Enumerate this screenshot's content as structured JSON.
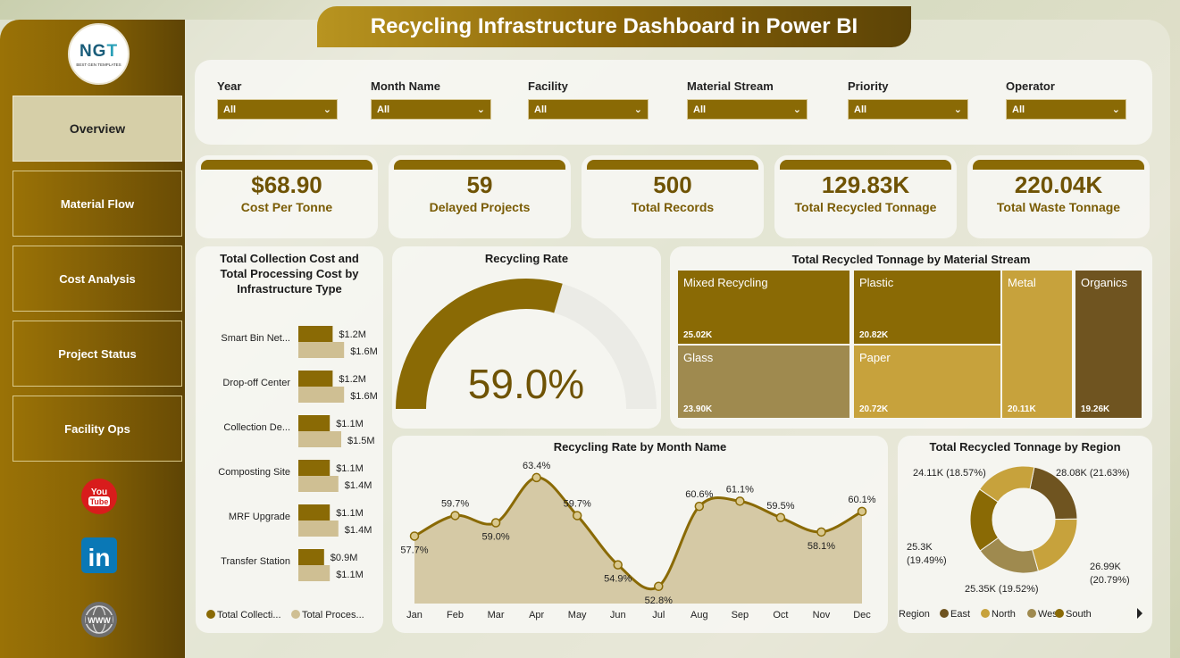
{
  "title": "Recycling Infrastructure Dashboard in Power BI",
  "logo": {
    "text_main": "NG",
    "text_accent": "T",
    "tagline": "BEST GEN TEMPLATES"
  },
  "nav": [
    {
      "label": "Overview",
      "active": true
    },
    {
      "label": "Material Flow",
      "active": false
    },
    {
      "label": "Cost Analysis",
      "active": false
    },
    {
      "label": "Project Status",
      "active": false
    },
    {
      "label": "Facility Ops",
      "active": false
    }
  ],
  "social": {
    "youtube": "You\nTube",
    "linkedin": "in",
    "web": "WWW"
  },
  "filters": [
    {
      "label": "Year",
      "value": "All"
    },
    {
      "label": "Month Name",
      "value": "All"
    },
    {
      "label": "Facility",
      "value": "All"
    },
    {
      "label": "Material Stream",
      "value": "All"
    },
    {
      "label": "Priority",
      "value": "All"
    },
    {
      "label": "Operator",
      "value": "All"
    }
  ],
  "kpis": [
    {
      "value": "$68.90",
      "label": "Cost Per Tonne"
    },
    {
      "value": "59",
      "label": "Delayed Projects"
    },
    {
      "value": "500",
      "label": "Total Records"
    },
    {
      "value": "129.83K",
      "label": "Total Recycled Tonnage"
    },
    {
      "value": "220.04K",
      "label": "Total Waste Tonnage"
    }
  ],
  "colors": {
    "dark_gold": "#8a6a05",
    "light_gold": "#cfbf93",
    "brown": "#6f5420",
    "mustard": "#c7a23c",
    "olive": "#9f8a4f"
  },
  "chart_data": [
    {
      "type": "bar",
      "title": "Total Collection Cost and Total Processing Cost by Infrastructure Type",
      "categories": [
        "Smart Bin Net...",
        "Drop-off Center",
        "Collection De...",
        "Composting Site",
        "MRF Upgrade",
        "Transfer Station"
      ],
      "series": [
        {
          "name": "Total Collecti...",
          "values": [
            1.2,
            1.2,
            1.1,
            1.1,
            1.1,
            0.9
          ],
          "labels": [
            "$1.2M",
            "$1.2M",
            "$1.1M",
            "$1.1M",
            "$1.1M",
            "$0.9M"
          ]
        },
        {
          "name": "Total Proces...",
          "values": [
            1.6,
            1.6,
            1.5,
            1.4,
            1.4,
            1.1
          ],
          "labels": [
            "$1.6M",
            "$1.6M",
            "$1.5M",
            "$1.4M",
            "$1.4M",
            "$1.1M"
          ]
        }
      ]
    },
    {
      "type": "gauge",
      "title": "Recycling Rate",
      "value": 59.0,
      "value_label": "59.0%",
      "max": 100
    },
    {
      "type": "treemap",
      "title": "Total Recycled Tonnage by Material Stream",
      "items": [
        {
          "name": "Mixed Recycling",
          "value": 25.02,
          "label": "25.02K"
        },
        {
          "name": "Glass",
          "value": 23.9,
          "label": "23.90K"
        },
        {
          "name": "Plastic",
          "value": 20.82,
          "label": "20.82K"
        },
        {
          "name": "Paper",
          "value": 20.72,
          "label": "20.72K"
        },
        {
          "name": "Metal",
          "value": 20.11,
          "label": "20.11K"
        },
        {
          "name": "Organics",
          "value": 19.26,
          "label": "19.26K"
        }
      ]
    },
    {
      "type": "area",
      "title": "Recycling Rate by Month Name",
      "x": [
        "Jan",
        "Feb",
        "Mar",
        "Apr",
        "May",
        "Jun",
        "Jul",
        "Aug",
        "Sep",
        "Oct",
        "Nov",
        "Dec"
      ],
      "values": [
        57.7,
        59.7,
        59.0,
        63.4,
        59.7,
        54.9,
        52.8,
        60.6,
        61.1,
        59.5,
        58.1,
        60.1
      ],
      "labels": [
        "57.7%",
        "59.7%",
        "59.0%",
        "63.4%",
        "59.7%",
        "54.9%",
        "52.8%",
        "60.6%",
        "61.1%",
        "59.5%",
        "58.1%",
        "60.1%"
      ]
    },
    {
      "type": "pie",
      "title": "Total Recycled Tonnage by Region",
      "legend_title": "Region",
      "slices": [
        {
          "name": "East",
          "value": 28.08,
          "label": "28.08K (21.63%)"
        },
        {
          "name": "North",
          "value": 26.99,
          "label": "26.99K (20.79%)"
        },
        {
          "name": "West",
          "value": 25.35,
          "label": "25.35K (19.52%)"
        },
        {
          "name": "South",
          "value": 25.3,
          "label": "25.3K (19.49%)"
        },
        {
          "name": "",
          "value": 24.11,
          "label": "24.11K (18.57%)"
        }
      ]
    }
  ]
}
